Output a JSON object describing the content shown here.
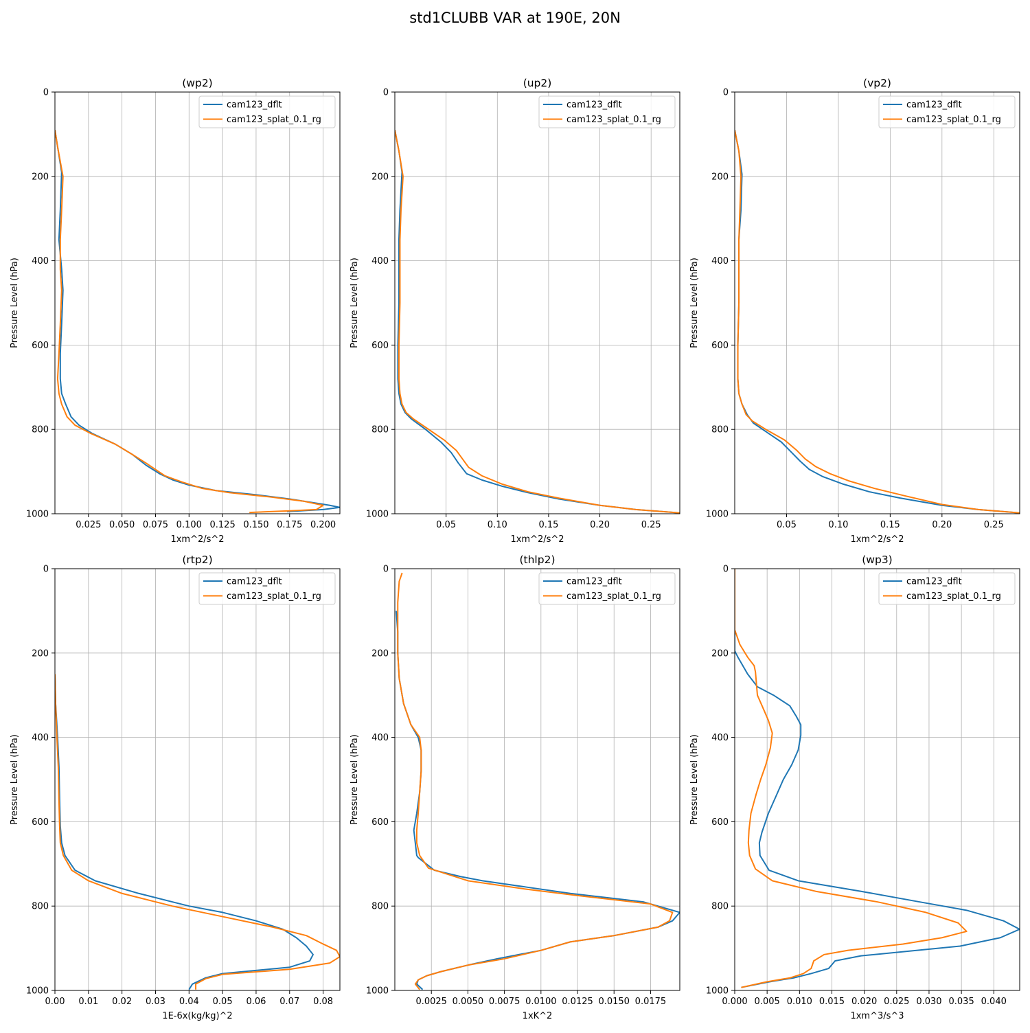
{
  "figure": {
    "title": "std1CLUBB VAR at 190E, 20N"
  },
  "legend_labels": [
    "cam123_dflt",
    "cam123_splat_0.1_rg"
  ],
  "colors": {
    "cam123_dflt": "#1f77b4",
    "cam123_splat_0.1_rg": "#ff7f0e"
  },
  "chart_data": [
    {
      "type": "line",
      "title": "(wp2)",
      "xlabel": "1xm^2/s^2",
      "ylabel": "Pressure Level (hPa)",
      "xlim": [
        0,
        0.2125
      ],
      "ylim": [
        1000,
        0
      ],
      "xticks": [
        0.025,
        0.05,
        0.075,
        0.1,
        0.125,
        0.15,
        0.175,
        0.2
      ],
      "xtick_labels": [
        "0.025",
        "0.050",
        "0.075",
        "0.100",
        "0.125",
        "0.150",
        "0.175",
        "0.200"
      ],
      "yticks": [
        0,
        200,
        400,
        600,
        800,
        1000
      ],
      "ytick_labels": [
        "0",
        "200",
        "400",
        "600",
        "800",
        "1000"
      ],
      "grid": true,
      "legend": "top-right",
      "series": [
        {
          "name": "cam123_dflt",
          "x": [
            0.0,
            0.002,
            0.005,
            0.004,
            0.003,
            0.005,
            0.006,
            0.005,
            0.004,
            0.004,
            0.005,
            0.008,
            0.012,
            0.018,
            0.028,
            0.045,
            0.058,
            0.068,
            0.078,
            0.088,
            0.1,
            0.12,
            0.15,
            0.175,
            0.195,
            0.205,
            0.2125,
            0.2,
            0.173
          ],
          "y": [
            90,
            130,
            190,
            280,
            350,
            420,
            470,
            550,
            620,
            680,
            715,
            740,
            770,
            790,
            810,
            835,
            860,
            885,
            905,
            920,
            932,
            945,
            955,
            965,
            975,
            980,
            985,
            990,
            995
          ]
        },
        {
          "name": "cam123_splat_0.1_rg",
          "x": [
            0.0,
            0.002,
            0.006,
            0.005,
            0.004,
            0.004,
            0.005,
            0.004,
            0.003,
            0.002,
            0.003,
            0.005,
            0.009,
            0.015,
            0.027,
            0.045,
            0.058,
            0.068,
            0.075,
            0.082,
            0.095,
            0.11,
            0.13,
            0.16,
            0.185,
            0.2,
            0.195,
            0.175,
            0.145
          ],
          "y": [
            90,
            130,
            200,
            280,
            350,
            420,
            470,
            550,
            620,
            680,
            715,
            740,
            770,
            790,
            810,
            835,
            860,
            880,
            895,
            910,
            925,
            940,
            950,
            960,
            970,
            980,
            990,
            993,
            997
          ]
        }
      ]
    },
    {
      "type": "line",
      "title": "(up2)",
      "xlabel": "1xm^2/s^2",
      "ylabel": "Pressure Level (hPa)",
      "xlim": [
        0,
        0.278
      ],
      "ylim": [
        1000,
        0
      ],
      "xticks": [
        0.05,
        0.1,
        0.15,
        0.2,
        0.25
      ],
      "xtick_labels": [
        "0.05",
        "0.10",
        "0.15",
        "0.20",
        "0.25"
      ],
      "yticks": [
        0,
        200,
        400,
        600,
        800,
        1000
      ],
      "ytick_labels": [
        "0",
        "200",
        "400",
        "600",
        "800",
        "1000"
      ],
      "grid": true,
      "legend": "top-right",
      "series": [
        {
          "name": "cam123_dflt",
          "x": [
            0.0,
            0.004,
            0.007,
            0.005,
            0.004,
            0.004,
            0.004,
            0.003,
            0.003,
            0.004,
            0.006,
            0.01,
            0.016,
            0.03,
            0.045,
            0.055,
            0.062,
            0.07,
            0.085,
            0.105,
            0.13,
            0.16,
            0.2,
            0.235,
            0.278
          ],
          "y": [
            90,
            140,
            190,
            280,
            350,
            420,
            500,
            600,
            680,
            715,
            740,
            760,
            775,
            800,
            830,
            855,
            880,
            905,
            920,
            935,
            950,
            965,
            980,
            990,
            998
          ]
        },
        {
          "name": "cam123_splat_0.1_rg",
          "x": [
            0.0,
            0.004,
            0.008,
            0.006,
            0.005,
            0.005,
            0.005,
            0.004,
            0.004,
            0.005,
            0.007,
            0.011,
            0.018,
            0.03,
            0.048,
            0.06,
            0.066,
            0.072,
            0.085,
            0.105,
            0.13,
            0.16,
            0.2,
            0.235,
            0.278
          ],
          "y": [
            90,
            140,
            200,
            280,
            350,
            420,
            500,
            600,
            680,
            715,
            740,
            760,
            775,
            795,
            825,
            850,
            870,
            890,
            910,
            930,
            948,
            963,
            980,
            990,
            998
          ]
        }
      ]
    },
    {
      "type": "line",
      "title": "(vp2)",
      "xlabel": "1xm^2/s^2",
      "ylabel": "Pressure Level (hPa)",
      "xlim": [
        0,
        0.275
      ],
      "ylim": [
        1000,
        0
      ],
      "xticks": [
        0.05,
        0.1,
        0.15,
        0.2,
        0.25
      ],
      "xtick_labels": [
        "0.05",
        "0.10",
        "0.15",
        "0.20",
        "0.25"
      ],
      "yticks": [
        0,
        200,
        400,
        600,
        800,
        1000
      ],
      "ytick_labels": [
        "0",
        "200",
        "400",
        "600",
        "800",
        "1000"
      ],
      "grid": true,
      "legend": "top-right",
      "series": [
        {
          "name": "cam123_dflt",
          "x": [
            0.0,
            0.004,
            0.007,
            0.006,
            0.004,
            0.004,
            0.004,
            0.003,
            0.003,
            0.004,
            0.007,
            0.012,
            0.018,
            0.03,
            0.045,
            0.055,
            0.063,
            0.072,
            0.085,
            0.105,
            0.13,
            0.16,
            0.2,
            0.235,
            0.275
          ],
          "y": [
            90,
            140,
            195,
            280,
            350,
            420,
            500,
            600,
            680,
            715,
            740,
            765,
            785,
            805,
            830,
            855,
            875,
            895,
            912,
            930,
            948,
            963,
            980,
            990,
            998
          ]
        },
        {
          "name": "cam123_splat_0.1_rg",
          "x": [
            0.0,
            0.004,
            0.006,
            0.005,
            0.004,
            0.004,
            0.004,
            0.003,
            0.003,
            0.004,
            0.007,
            0.011,
            0.017,
            0.03,
            0.048,
            0.06,
            0.068,
            0.078,
            0.092,
            0.11,
            0.135,
            0.165,
            0.2,
            0.235,
            0.275
          ],
          "y": [
            90,
            140,
            200,
            280,
            350,
            420,
            500,
            600,
            680,
            715,
            740,
            765,
            780,
            800,
            825,
            850,
            870,
            888,
            905,
            922,
            940,
            958,
            978,
            990,
            998
          ]
        }
      ]
    },
    {
      "type": "line",
      "title": "(rtp2)",
      "xlabel": "1E-6x(kg/kg)^2",
      "ylabel": "Pressure Level (hPa)",
      "xlim": [
        0,
        0.085
      ],
      "ylim": [
        1000,
        0
      ],
      "xticks": [
        0,
        0.01,
        0.02,
        0.03,
        0.04,
        0.05,
        0.06,
        0.07,
        0.08
      ],
      "xtick_labels": [
        "0.00",
        "0.01",
        "0.02",
        "0.03",
        "0.04",
        "0.05",
        "0.06",
        "0.07",
        "0.08"
      ],
      "yticks": [
        0,
        200,
        400,
        600,
        800,
        1000
      ],
      "ytick_labels": [
        "0",
        "200",
        "400",
        "600",
        "800",
        "1000"
      ],
      "grid": true,
      "legend": "top-right",
      "series": [
        {
          "name": "cam123_dflt",
          "x": [
            0.0,
            0.0002,
            0.0008,
            0.0012,
            0.0014,
            0.0016,
            0.002,
            0.003,
            0.006,
            0.012,
            0.025,
            0.04,
            0.05,
            0.06,
            0.068,
            0.072,
            0.075,
            0.077,
            0.076,
            0.07,
            0.05,
            0.045,
            0.041,
            0.04
          ],
          "y": [
            250,
            320,
            400,
            470,
            550,
            610,
            650,
            680,
            715,
            740,
            770,
            800,
            815,
            835,
            855,
            875,
            895,
            915,
            930,
            945,
            960,
            970,
            985,
            998
          ]
        },
        {
          "name": "cam123_splat_0.1_rg",
          "x": [
            0.0,
            0.0002,
            0.0006,
            0.001,
            0.0012,
            0.0014,
            0.0016,
            0.0025,
            0.005,
            0.01,
            0.02,
            0.035,
            0.05,
            0.065,
            0.075,
            0.08,
            0.084,
            0.085,
            0.082,
            0.07,
            0.05,
            0.045,
            0.042,
            0.042
          ],
          "y": [
            250,
            320,
            400,
            470,
            550,
            610,
            650,
            680,
            715,
            740,
            770,
            800,
            825,
            850,
            870,
            890,
            905,
            920,
            935,
            950,
            962,
            972,
            985,
            998
          ]
        }
      ]
    },
    {
      "type": "line",
      "title": "(thlp2)",
      "xlabel": "1xK^2",
      "ylabel": "Pressure Level (hPa)",
      "xlim": [
        0,
        0.0195
      ],
      "ylim": [
        1000,
        0
      ],
      "xticks": [
        0.0025,
        0.005,
        0.0075,
        0.01,
        0.0125,
        0.015,
        0.0175
      ],
      "xtick_labels": [
        "0.0025",
        "0.0050",
        "0.0075",
        "0.0100",
        "0.0125",
        "0.0150",
        "0.0175"
      ],
      "yticks": [
        0,
        200,
        400,
        600,
        800,
        1000
      ],
      "ytick_labels": [
        "0",
        "200",
        "400",
        "600",
        "800",
        "1000"
      ],
      "grid": true,
      "legend": "top-right",
      "series": [
        {
          "name": "cam123_dflt",
          "x": [
            0.0001,
            0.0002,
            0.0002,
            0.0003,
            0.0006,
            0.0011,
            0.0016,
            0.0018,
            0.0018,
            0.0017,
            0.0015,
            0.0013,
            0.0014,
            0.0015,
            0.0016,
            0.0027,
            0.0045,
            0.006,
            0.009,
            0.012,
            0.017,
            0.0195,
            0.019,
            0.018,
            0.015,
            0.012,
            0.01,
            0.007,
            0.005,
            0.0032,
            0.0022,
            0.0016,
            0.0015,
            0.0019
          ],
          "y": [
            100,
            150,
            200,
            260,
            320,
            370,
            400,
            430,
            480,
            530,
            580,
            620,
            650,
            680,
            685,
            715,
            730,
            740,
            755,
            770,
            790,
            815,
            835,
            850,
            870,
            885,
            905,
            925,
            940,
            955,
            965,
            975,
            985,
            998
          ]
        },
        {
          "name": "cam123_splat_0.1_rg",
          "x": [
            0.0005,
            0.0003,
            0.0002,
            0.0002,
            0.0002,
            0.0003,
            0.0006,
            0.0011,
            0.0017,
            0.0018,
            0.0018,
            0.0017,
            0.0016,
            0.0015,
            0.0015,
            0.0017,
            0.0023,
            0.005,
            0.009,
            0.0125,
            0.0175,
            0.019,
            0.0188,
            0.018,
            0.015,
            0.012,
            0.01,
            0.0075,
            0.005,
            0.0032,
            0.0022,
            0.0016,
            0.0014,
            0.0017
          ],
          "y": [
            10,
            30,
            80,
            150,
            200,
            260,
            320,
            370,
            400,
            430,
            480,
            530,
            580,
            620,
            650,
            680,
            710,
            740,
            760,
            775,
            795,
            815,
            835,
            850,
            870,
            885,
            905,
            925,
            940,
            955,
            965,
            975,
            985,
            998
          ]
        }
      ]
    },
    {
      "type": "line",
      "title": "(wp3)",
      "xlabel": "1xm^3/s^3",
      "ylabel": "Pressure Level (hPa)",
      "xlim": [
        0,
        0.044
      ],
      "ylim": [
        1000,
        0
      ],
      "xticks": [
        0,
        0.005,
        0.01,
        0.015,
        0.02,
        0.025,
        0.03,
        0.035,
        0.04
      ],
      "xtick_labels": [
        "0.000",
        "0.005",
        "0.010",
        "0.015",
        "0.020",
        "0.025",
        "0.030",
        "0.035",
        "0.040"
      ],
      "yticks": [
        0,
        200,
        400,
        600,
        800,
        1000
      ],
      "ytick_labels": [
        "0",
        "200",
        "400",
        "600",
        "800",
        "1000"
      ],
      "grid": true,
      "legend": "top-right",
      "series": [
        {
          "name": "cam123_dflt",
          "x": [
            0.0,
            0.0,
            0.0,
            0.0005,
            0.002,
            0.0035,
            0.006,
            0.0085,
            0.0095,
            0.0102,
            0.0102,
            0.0098,
            0.0088,
            0.0075,
            0.0065,
            0.0052,
            0.0042,
            0.0038,
            0.0039,
            0.0053,
            0.0098,
            0.0195,
            0.0285,
            0.0358,
            0.0415,
            0.044,
            0.041,
            0.0348,
            0.0195,
            0.0155,
            0.0145,
            0.0118,
            0.0092,
            0.0052,
            0.001
          ],
          "y": [
            0,
            100,
            195,
            210,
            250,
            280,
            300,
            325,
            350,
            370,
            395,
            430,
            465,
            500,
            535,
            580,
            625,
            650,
            680,
            715,
            740,
            765,
            790,
            810,
            835,
            855,
            875,
            895,
            918,
            930,
            948,
            960,
            970,
            980,
            993
          ]
        },
        {
          "name": "cam123_splat_0.1_rg",
          "x": [
            0.0,
            0.0,
            0.0,
            0.0008,
            0.002,
            0.003,
            0.0032,
            0.0035,
            0.0045,
            0.0052,
            0.0058,
            0.0055,
            0.0048,
            0.004,
            0.0033,
            0.0025,
            0.0022,
            0.0021,
            0.0023,
            0.0032,
            0.0058,
            0.0125,
            0.022,
            0.0295,
            0.0345,
            0.0358,
            0.032,
            0.026,
            0.0175,
            0.0138,
            0.0122,
            0.0118,
            0.0106,
            0.0086,
            0.0048,
            0.001
          ],
          "y": [
            0,
            100,
            145,
            180,
            210,
            230,
            245,
            300,
            335,
            360,
            390,
            425,
            465,
            500,
            535,
            580,
            620,
            650,
            680,
            712,
            740,
            765,
            790,
            815,
            840,
            860,
            875,
            890,
            905,
            915,
            930,
            948,
            960,
            970,
            980,
            993
          ]
        }
      ]
    }
  ]
}
